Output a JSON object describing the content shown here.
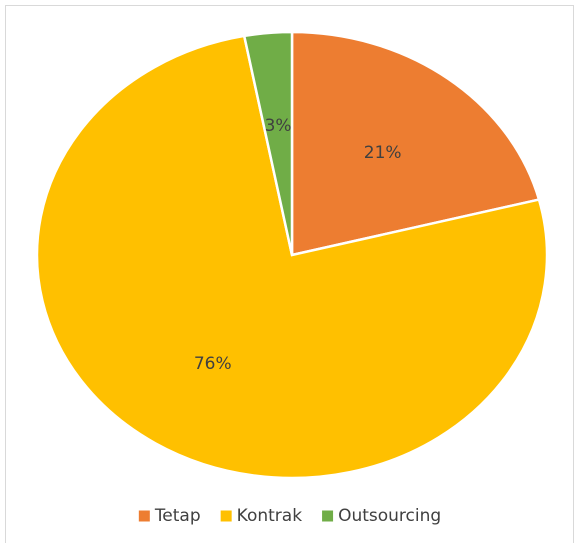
{
  "chart_data": {
    "type": "pie",
    "categories": [
      "Tetap",
      "Kontrak",
      "Outsourcing"
    ],
    "values": [
      21,
      76,
      3
    ],
    "value_labels": [
      "21%",
      "76%",
      "3%"
    ],
    "colors": [
      "#ED7D31",
      "#FFC000",
      "#70AD47"
    ],
    "legend": "bottom"
  }
}
